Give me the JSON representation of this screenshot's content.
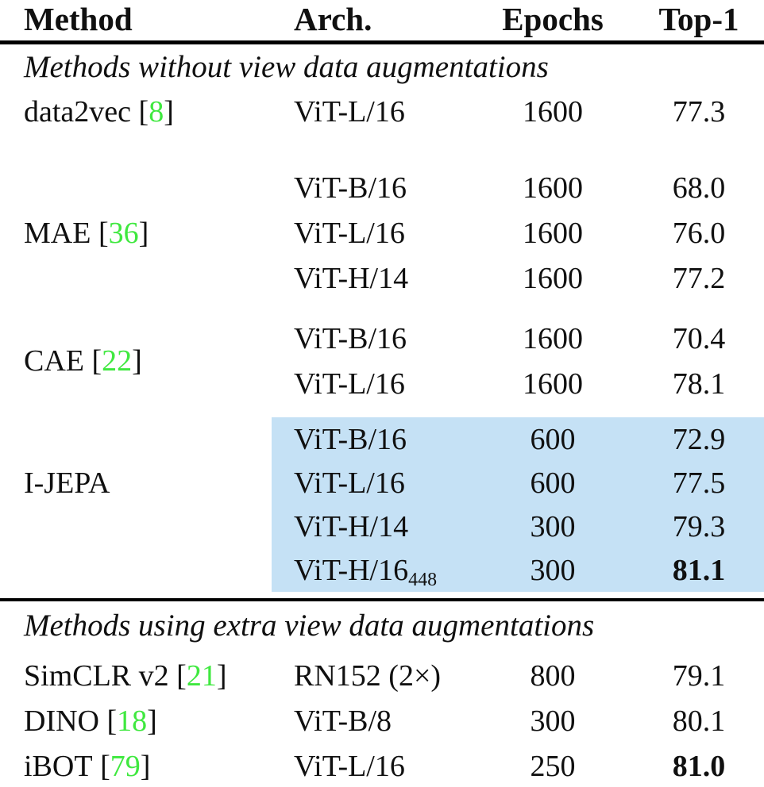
{
  "colors": {
    "citation_green": "#3fe83f",
    "highlight_blue": "#c5e1f5",
    "text": "#101010",
    "rule": "#000000"
  },
  "header": {
    "method": "Method",
    "arch": "Arch.",
    "epochs": "Epochs",
    "top1": "Top-1"
  },
  "sections": [
    {
      "title": "Methods without view data augmentations",
      "groups": [
        {
          "method": "data2vec",
          "cite": "8",
          "rows": [
            {
              "arch": "ViT-L/16",
              "epochs": "1600",
              "top1": "77.3"
            }
          ]
        },
        {
          "method": "MAE",
          "cite": "36",
          "rows": [
            {
              "arch": "ViT-B/16",
              "epochs": "1600",
              "top1": "68.0"
            },
            {
              "arch": "ViT-L/16",
              "epochs": "1600",
              "top1": "76.0"
            },
            {
              "arch": "ViT-H/14",
              "epochs": "1600",
              "top1": "77.2"
            }
          ]
        },
        {
          "method": "CAE",
          "cite": "22",
          "rows": [
            {
              "arch": "ViT-B/16",
              "epochs": "1600",
              "top1": "70.4"
            },
            {
              "arch": "ViT-L/16",
              "epochs": "1600",
              "top1": "78.1"
            }
          ]
        },
        {
          "method": "I-JEPA",
          "cite": "",
          "highlighted": true,
          "rows": [
            {
              "arch": "ViT-B/16",
              "epochs": "600",
              "top1": "72.9"
            },
            {
              "arch": "ViT-L/16",
              "epochs": "600",
              "top1": "77.5"
            },
            {
              "arch": "ViT-H/14",
              "epochs": "300",
              "top1": "79.3"
            },
            {
              "arch": "ViT-H/16",
              "arch_sub": "448",
              "epochs": "300",
              "top1": "81.1",
              "top1_bold": true
            }
          ]
        }
      ]
    },
    {
      "title": "Methods using extra view data augmentations",
      "groups": [
        {
          "method": "SimCLR v2",
          "cite": "21",
          "rows": [
            {
              "arch": "RN152 (2×)",
              "epochs": "800",
              "top1": "79.1"
            }
          ]
        },
        {
          "method": "DINO",
          "cite": "18",
          "rows": [
            {
              "arch": "ViT-B/8",
              "epochs": "300",
              "top1": "80.1"
            }
          ]
        },
        {
          "method": "iBOT",
          "cite": "79",
          "rows": [
            {
              "arch": "ViT-L/16",
              "epochs": "250",
              "top1": "81.0",
              "top1_bold": true
            }
          ]
        }
      ]
    }
  ]
}
